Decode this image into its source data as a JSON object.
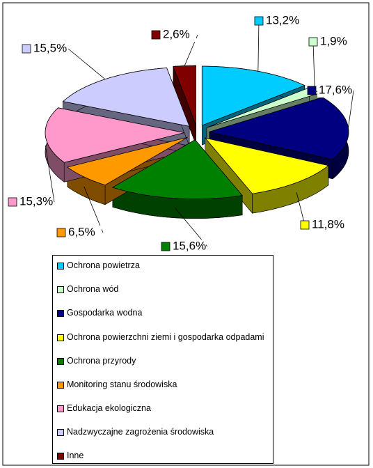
{
  "chart_data": {
    "type": "pie3d",
    "categories": [
      "Ochrona powietrza",
      "Ochrona wód",
      "Gospodarka wodna",
      "Ochrona powierzchni ziemi i gospodarka odpadami",
      "Ochrona przyrody",
      "Monitoring stanu środowiska",
      "Edukacja ekologiczna",
      "Nadzwyczajne zagrożenia środowiska",
      "Inne"
    ],
    "values": [
      13.2,
      1.9,
      17.6,
      11.8,
      15.6,
      6.5,
      15.3,
      15.5,
      2.6
    ],
    "value_labels": [
      "13,2%",
      "1,9%",
      "17,6%",
      "11,8%",
      "15,6%",
      "6,5%",
      "15,3%",
      "15,5%",
      "2,6%"
    ],
    "colors": [
      "#00ccff",
      "#ccffcc",
      "#000080",
      "#ffff00",
      "#008000",
      "#ff9900",
      "#ff99cc",
      "#ccccff",
      "#800000"
    ],
    "legend": "bottom"
  }
}
